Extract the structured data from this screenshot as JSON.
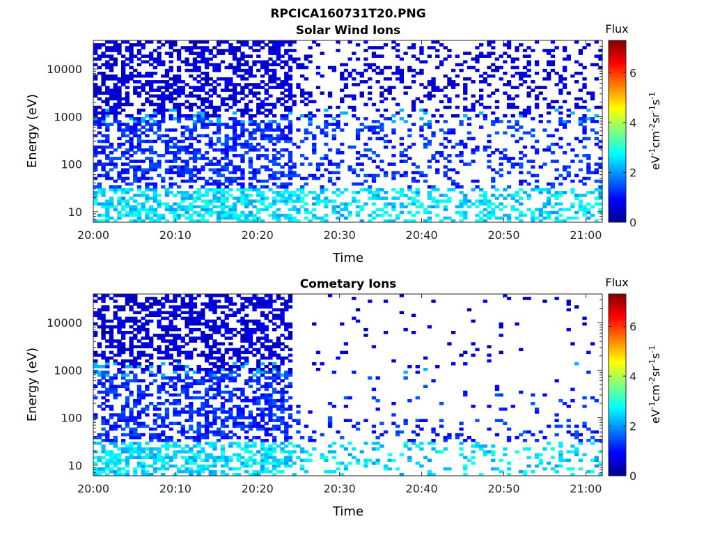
{
  "figure_title": "RPCICA160731T20.PNG",
  "colorbar": {
    "label": "Flux",
    "units": [
      "eV",
      "-1",
      "cm",
      "-2",
      "sr",
      "-1",
      "s",
      "-1"
    ],
    "range": [
      0,
      7.3
    ],
    "ticks": [
      "0",
      "2",
      "4",
      "6"
    ]
  },
  "colors": {
    "background": "#ffffff",
    "axis": "#262626"
  },
  "chart_data": [
    {
      "type": "heatmap",
      "title": "Solar Wind Ions",
      "xlabel": "Time",
      "ylabel": "Energy (eV)",
      "x_range": [
        "20:00",
        "21:02"
      ],
      "x_ticks": [
        "20:00",
        "20:10",
        "20:20",
        "20:30",
        "20:40",
        "20:50",
        "21:00"
      ],
      "y_range": [
        6,
        40000
      ],
      "y_scale": "log",
      "y_ticks": [
        "10",
        "100",
        "1000",
        "10000"
      ],
      "colormap": "jet",
      "value_range": [
        0,
        7.3
      ],
      "sparse_after": "20:24",
      "typical_values": {
        "high_energy_above_1000eV": 0.6,
        "mid_energy_100_to_1000eV": 1.2,
        "low_energy_below_30eV": 2.5,
        "band_near_1000eV": 2.2
      }
    },
    {
      "type": "heatmap",
      "title": "Cometary Ions",
      "xlabel": "Time",
      "ylabel": "Energy (eV)",
      "x_range": [
        "20:00",
        "21:02"
      ],
      "x_ticks": [
        "20:00",
        "20:10",
        "20:20",
        "20:30",
        "20:40",
        "20:50",
        "21:00"
      ],
      "y_range": [
        6,
        40000
      ],
      "y_scale": "log",
      "y_ticks": [
        "10",
        "100",
        "1000",
        "10000"
      ],
      "colormap": "jet",
      "value_range": [
        0,
        7.3
      ],
      "sparse_after": "20:24",
      "typical_values": {
        "high_energy_above_1000eV": 0.6,
        "mid_energy_100_to_1000eV": 1.2,
        "low_energy_below_30eV": 2.5,
        "band_near_1000eV": 2.2
      }
    }
  ]
}
